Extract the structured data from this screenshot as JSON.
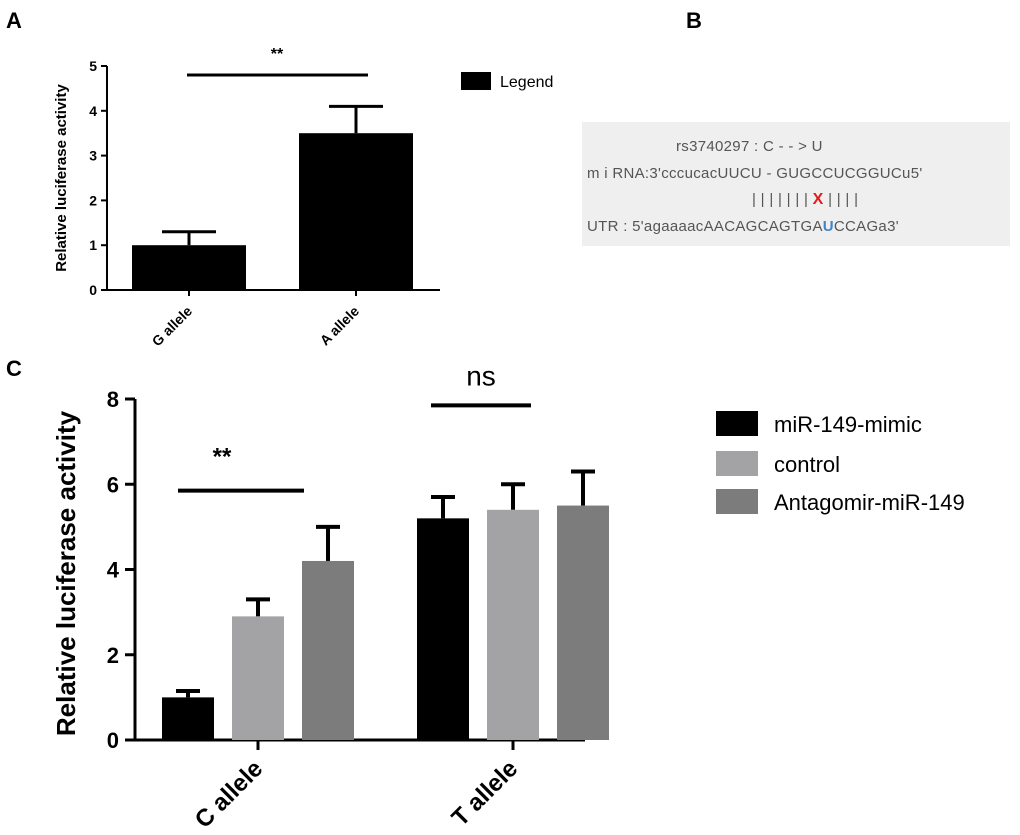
{
  "panels": {
    "a_label": "A",
    "b_label": "B",
    "c_label": "C"
  },
  "chart_data": [
    {
      "id": "A",
      "type": "bar",
      "categories": [
        "G allele",
        "A allele"
      ],
      "series": [
        {
          "name": "Legend",
          "values": [
            1.0,
            3.5
          ],
          "errors": [
            0.3,
            0.6
          ],
          "color": "#000000"
        }
      ],
      "ylabel": "Relative luciferase activity",
      "xlabel": "",
      "ylim": [
        0,
        5
      ],
      "yticks": [
        "0",
        "1",
        "2",
        "3",
        "4",
        "5"
      ],
      "significance": {
        "label": "**",
        "y": 4.8,
        "from": "G allele",
        "to": "A allele"
      },
      "legend_position": "top-right"
    },
    {
      "id": "C",
      "type": "bar",
      "categories": [
        "C allele",
        "T allele"
      ],
      "series": [
        {
          "name": "miR-149-mimic",
          "values": [
            1.0,
            5.2
          ],
          "errors": [
            0.15,
            0.5
          ],
          "color": "#000000"
        },
        {
          "name": "control",
          "values": [
            2.9,
            5.4
          ],
          "errors": [
            0.4,
            0.6
          ],
          "color": "#a3a3a6"
        },
        {
          "name": "Antagomir-miR-149",
          "values": [
            4.2,
            5.5
          ],
          "errors": [
            0.8,
            0.8
          ],
          "color": "#7c7c7c"
        }
      ],
      "ylabel": "Relative luciferase activity",
      "xlabel": "",
      "ylim": [
        0,
        8
      ],
      "yticks": [
        "0",
        "2",
        "4",
        "6",
        "8"
      ],
      "significance": [
        {
          "label": "**",
          "y": 5.85,
          "category": "C allele"
        },
        {
          "label": "ns",
          "y": 7.85,
          "category": "T allele"
        }
      ],
      "legend_position": "top-right"
    }
  ],
  "panel_b": {
    "snp": "rs3740297 :  C  - - >  U",
    "mirna_prefix": "m i RNA:3'cccucacUUCU - GUGCCUCGGUCu5'",
    "pairing": "| |    |    | |      | |",
    "mismatch": "X",
    "pairing_tail": "| | | |",
    "utr_prefix": "UTR :      5'agaaaacAACAGCAGTGA",
    "utr_variant": "U",
    "utr_suffix": "CCAGa3'",
    "mismatch_color": "#e31b1b",
    "variant_color": "#3d85c6"
  }
}
